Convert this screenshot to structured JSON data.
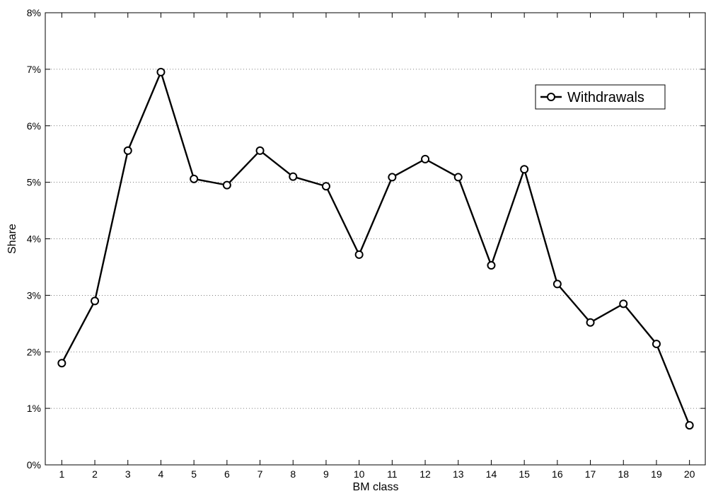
{
  "chart_data": {
    "type": "line",
    "title": "",
    "xlabel": "BM class",
    "ylabel": "Share",
    "x": [
      1,
      2,
      3,
      4,
      5,
      6,
      7,
      8,
      9,
      10,
      11,
      12,
      13,
      14,
      15,
      16,
      17,
      18,
      19,
      20
    ],
    "xlim": [
      0.5,
      20.5
    ],
    "ylim": [
      0,
      8
    ],
    "y_ticks": [
      0,
      1,
      2,
      3,
      4,
      5,
      6,
      7,
      8
    ],
    "y_tick_labels": [
      "0%",
      "1%",
      "2%",
      "3%",
      "4%",
      "5%",
      "6%",
      "7%",
      "8%"
    ],
    "y_unit": "%",
    "grid": true,
    "legend_position": "top-right",
    "series": [
      {
        "name": "Withdrawals",
        "color": "#000000",
        "marker": "circle",
        "values": [
          1.8,
          2.9,
          5.56,
          6.95,
          5.06,
          4.95,
          5.56,
          5.1,
          4.93,
          3.72,
          5.09,
          5.41,
          5.09,
          3.53,
          5.23,
          3.2,
          2.52,
          2.85,
          2.14,
          0.7
        ]
      }
    ]
  }
}
